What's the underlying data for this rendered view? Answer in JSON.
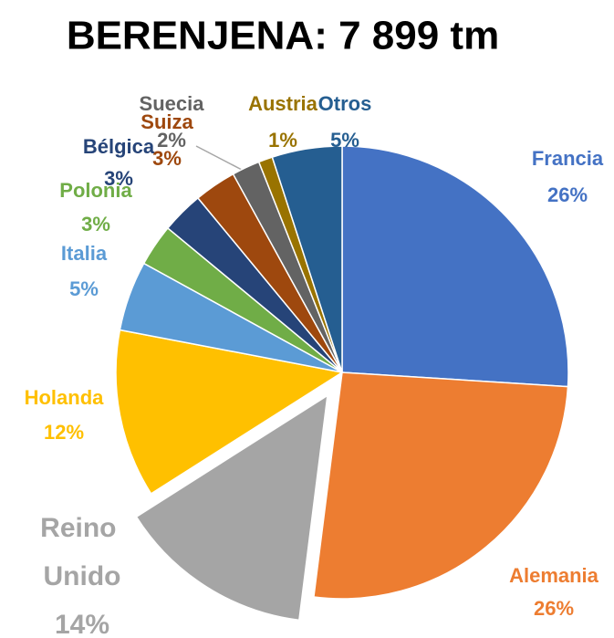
{
  "chart_data": {
    "type": "pie",
    "title": "BERENJENA: 7 899 tm",
    "categories": [
      "Francia",
      "Alemania",
      "Reino Unido",
      "Holanda",
      "Italia",
      "Polonia",
      "Bélgica",
      "Suiza",
      "Suecia",
      "Austria",
      "Otros"
    ],
    "values": [
      26,
      26,
      14,
      12,
      5,
      3,
      3,
      3,
      2,
      1,
      5
    ],
    "value_labels": [
      "26%",
      "26%",
      "14%",
      "12%",
      "5%",
      "3%",
      "3%",
      "3%",
      "2%",
      "1%",
      "5%"
    ],
    "colors": [
      "#4472c4",
      "#ed7d31",
      "#a5a5a5",
      "#ffc000",
      "#5b9bd5",
      "#70ad47",
      "#264478",
      "#9e480e",
      "#636363",
      "#997300",
      "#255e91"
    ],
    "exploded": "Reino Unido"
  }
}
